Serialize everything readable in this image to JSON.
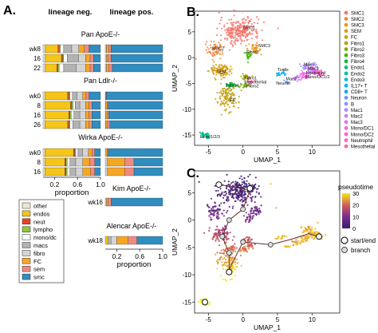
{
  "panel_labels": {
    "a": "A.",
    "b": "B.",
    "c": "C."
  },
  "panel_a": {
    "col_neg": "lineage neg.",
    "col_pos": "lineage pos.",
    "x_label": "proportion",
    "tick_labels": [
      "0.2",
      "0.6",
      "1.0"
    ],
    "legend": [
      {
        "name": "other",
        "color": "#ede7d2"
      },
      {
        "name": "endos",
        "color": "#f5c518"
      },
      {
        "name": "neut",
        "color": "#e8431f"
      },
      {
        "name": "lympho",
        "color": "#8fc640"
      },
      {
        "name": "mono/dc",
        "color": "#ffffff"
      },
      {
        "name": "macs",
        "color": "#b3b3b3"
      },
      {
        "name": "fibro",
        "color": "#d4d4d4"
      },
      {
        "name": "FC",
        "color": "#f5a623"
      },
      {
        "name": "sem",
        "color": "#f08a80"
      },
      {
        "name": "smc",
        "color": "#2f8dbf"
      }
    ]
  },
  "chart_data": [
    {
      "type": "bar",
      "title": "Pan ApoE-/-",
      "categories": [
        "wk8",
        "16",
        "22"
      ],
      "series_order": [
        "other",
        "endos",
        "neut",
        "lympho",
        "mono/dc",
        "macs",
        "fibro",
        "FC",
        "sem",
        "smc"
      ],
      "neg": [
        [
          0.04,
          0.22,
          0.02,
          0.02,
          0.06,
          0.14,
          0.12,
          0.1,
          0.08,
          0.2
        ],
        [
          0.04,
          0.28,
          0.02,
          0.02,
          0.06,
          0.2,
          0.12,
          0.08,
          0.06,
          0.12
        ],
        [
          0.04,
          0.2,
          0.02,
          0.02,
          0.08,
          0.22,
          0.16,
          0.08,
          0.06,
          0.12
        ]
      ],
      "pos": [
        [
          0,
          0,
          0,
          0,
          0,
          0,
          0.02,
          0.04,
          0.04,
          0.9
        ],
        [
          0,
          0,
          0,
          0,
          0,
          0,
          0.02,
          0.03,
          0.05,
          0.9
        ],
        [
          0,
          0,
          0,
          0,
          0,
          0,
          0.02,
          0.04,
          0.06,
          0.88
        ]
      ]
    },
    {
      "type": "bar",
      "title": "Pan Ldlr-/-",
      "categories": [
        "wk0",
        "8",
        "16",
        "26"
      ],
      "series_order": [
        "other",
        "endos",
        "neut",
        "lympho",
        "mono/dc",
        "macs",
        "fibro",
        "FC",
        "sem",
        "smc"
      ],
      "neg": [
        [
          0.03,
          0.4,
          0.02,
          0.02,
          0.04,
          0.08,
          0.1,
          0.06,
          0.05,
          0.2
        ],
        [
          0.03,
          0.45,
          0.02,
          0.02,
          0.04,
          0.08,
          0.1,
          0.06,
          0.05,
          0.15
        ],
        [
          0.03,
          0.42,
          0.02,
          0.02,
          0.05,
          0.1,
          0.1,
          0.06,
          0.05,
          0.15
        ],
        [
          0.03,
          0.4,
          0.02,
          0.02,
          0.05,
          0.12,
          0.1,
          0.06,
          0.05,
          0.15
        ]
      ],
      "pos": [
        [
          0,
          0,
          0,
          0,
          0,
          0,
          0,
          0.01,
          0.01,
          0.98
        ],
        [
          0,
          0,
          0,
          0,
          0,
          0,
          0.01,
          0.02,
          0.02,
          0.95
        ],
        [
          0,
          0,
          0,
          0,
          0,
          0,
          0.01,
          0.03,
          0.02,
          0.94
        ],
        [
          0,
          0,
          0,
          0,
          0,
          0,
          0.01,
          0.03,
          0.04,
          0.92
        ]
      ]
    },
    {
      "type": "bar",
      "title": "Wirka ApoE-/-",
      "categories": [
        "wk0",
        "8",
        "16"
      ],
      "series_order": [
        "other",
        "endos",
        "neut",
        "lympho",
        "mono/dc",
        "macs",
        "fibro",
        "FC",
        "sem",
        "smc"
      ],
      "neg": [
        [
          0.03,
          0.5,
          0.02,
          0.02,
          0.04,
          0.08,
          0.1,
          0.06,
          0.05,
          0.1
        ],
        [
          0.03,
          0.35,
          0.02,
          0.02,
          0.05,
          0.1,
          0.12,
          0.12,
          0.09,
          0.1
        ],
        [
          0.03,
          0.35,
          0.02,
          0.02,
          0.05,
          0.1,
          0.12,
          0.14,
          0.07,
          0.1
        ]
      ],
      "pos": [
        [
          0,
          0,
          0,
          0,
          0,
          0,
          0,
          0.03,
          0.02,
          0.95
        ],
        [
          0,
          0,
          0,
          0,
          0,
          0,
          0.04,
          0.3,
          0.16,
          0.5
        ],
        [
          0,
          0,
          0,
          0,
          0,
          0,
          0.04,
          0.3,
          0.16,
          0.5
        ]
      ]
    },
    {
      "type": "bar",
      "title": "Kim ApoE-/-",
      "categories": [
        "wk16"
      ],
      "series_order": [
        "other",
        "endos",
        "neut",
        "lympho",
        "mono/dc",
        "macs",
        "fibro",
        "FC",
        "sem",
        "smc"
      ],
      "pos": [
        [
          0,
          0,
          0,
          0,
          0,
          0,
          0.02,
          0.03,
          0.05,
          0.9
        ]
      ]
    },
    {
      "type": "bar",
      "title": "Alencar ApoE-/-",
      "categories": [
        "wk18"
      ],
      "series_order": [
        "other",
        "endos",
        "neut",
        "lympho",
        "mono/dc",
        "macs",
        "fibro",
        "FC",
        "sem",
        "smc"
      ],
      "pos": [
        [
          0,
          0.05,
          0,
          0,
          0,
          0.05,
          0.1,
          0.2,
          0.15,
          0.45
        ]
      ]
    },
    {
      "type": "scatter",
      "xlabel": "UMAP_1",
      "ylabel": "UMAP_2",
      "xticks": [
        -5,
        0,
        5,
        10
      ],
      "yticks": [
        5,
        0,
        -5,
        -10,
        -15
      ],
      "xlim": [
        -7,
        14
      ],
      "ylim": [
        -17,
        9
      ],
      "cluster_labels": [
        {
          "text": "SMC1",
          "x": 0,
          "y": 5.5
        },
        {
          "text": "SMC2",
          "x": -4.5,
          "y": 1.5
        },
        {
          "text": "SMC3",
          "x": 2.2,
          "y": 2
        },
        {
          "text": "Fibro3",
          "x": 0.5,
          "y": 0.8
        },
        {
          "text": "SEM",
          "x": -3.8,
          "y": -3
        },
        {
          "text": "Fibro1",
          "x": 0.2,
          "y": -4.2
        },
        {
          "text": "Mesothelial",
          "x": 0.2,
          "y": -5
        },
        {
          "text": "Fibro4",
          "x": -2.4,
          "y": -5.7
        },
        {
          "text": "Fibro2",
          "x": 0.5,
          "y": -5.8
        },
        {
          "text": "FC",
          "x": -1.9,
          "y": -8.5
        },
        {
          "text": "Tcells",
          "x": 5,
          "y": -2.6
        },
        {
          "text": "Mac1",
          "x": 8.8,
          "y": -1.6
        },
        {
          "text": "Mac3",
          "x": 9.4,
          "y": -2.4
        },
        {
          "text": "Neutrophil",
          "x": 9.1,
          "y": -3.2
        },
        {
          "text": "Mono/DC1/2",
          "x": 9,
          "y": -4
        },
        {
          "text": "Mac2",
          "x": 6.2,
          "y": -4.4
        },
        {
          "text": "Neuron",
          "x": 4.8,
          "y": -5.2
        },
        {
          "text": "Endo1/2/3",
          "x": -6.2,
          "y": -15.6
        }
      ],
      "legend": [
        {
          "name": "SMC1",
          "color": "#f8766d"
        },
        {
          "name": "SMC2",
          "color": "#f08a3d"
        },
        {
          "name": "SMC3",
          "color": "#e69a1f"
        },
        {
          "name": "SEM",
          "color": "#d4a017"
        },
        {
          "name": "FC",
          "color": "#c4a216"
        },
        {
          "name": "Fibro1",
          "color": "#a6a800"
        },
        {
          "name": "Fibro2",
          "color": "#7cae00"
        },
        {
          "name": "Fibro3",
          "color": "#3db800"
        },
        {
          "name": "Fibro4",
          "color": "#00ba38"
        },
        {
          "name": "Endo1",
          "color": "#00bf7d"
        },
        {
          "name": "Endo2",
          "color": "#00c0a3"
        },
        {
          "name": "Endo3",
          "color": "#00bfc4"
        },
        {
          "name": "IL17+ T",
          "color": "#00b8e7"
        },
        {
          "name": "CD8+ T",
          "color": "#00a9ff"
        },
        {
          "name": "Neuron",
          "color": "#619cff"
        },
        {
          "name": "B",
          "color": "#8b93ff"
        },
        {
          "name": "Mac1",
          "color": "#a58aff"
        },
        {
          "name": "Mac2",
          "color": "#c77cff"
        },
        {
          "name": "Mac3",
          "color": "#e76bf3"
        },
        {
          "name": "Mono/DC1",
          "color": "#f564e3"
        },
        {
          "name": "Mono/DC2",
          "color": "#fd61d1"
        },
        {
          "name": "Neutrophil",
          "color": "#ff62bc"
        },
        {
          "name": "Mesothelial",
          "color": "#ff6c90"
        }
      ]
    },
    {
      "type": "scatter",
      "xlabel": "UMAP_1",
      "ylabel": "UMAP_2",
      "xticks": [
        -5,
        0,
        5,
        10
      ],
      "yticks": [
        5,
        0,
        -5,
        -10,
        -15
      ],
      "xlim": [
        -7,
        14
      ],
      "ylim": [
        -17,
        9
      ],
      "colorbar": {
        "title": "pseudotime",
        "ticks": [
          30,
          20,
          10,
          0
        ],
        "low_color": "#3b1d6e",
        "high_color": "#f5e61a"
      },
      "legend": [
        {
          "name": "start/end"
        },
        {
          "name": "branch"
        }
      ]
    }
  ]
}
